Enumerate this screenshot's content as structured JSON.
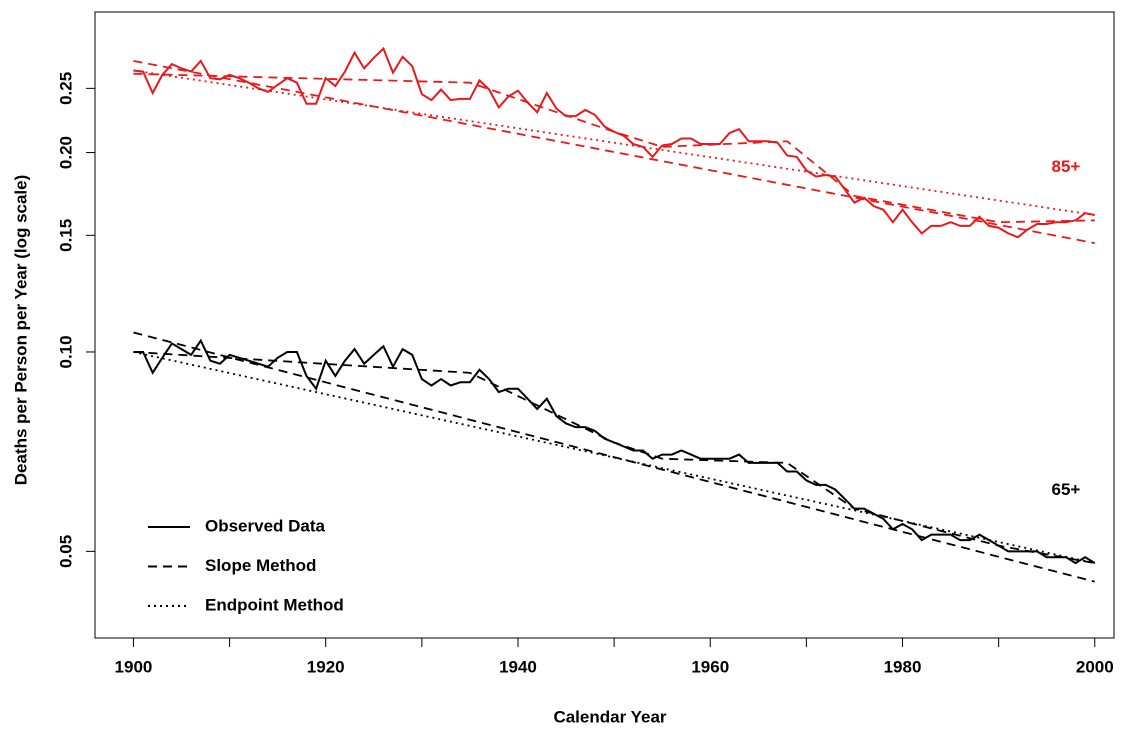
{
  "chart_data": {
    "type": "line",
    "x_label": "Calendar Year",
    "y_label": "Deaths per Person per Year (log scale)",
    "log_y": true,
    "xlim": [
      1896,
      2002
    ],
    "ylim": [
      0.037,
      0.326
    ],
    "xticks": [
      1900,
      1920,
      1940,
      1960,
      1980,
      2000
    ],
    "xminor_ticks": [
      1910,
      1930,
      1950,
      1970,
      1990
    ],
    "yticks": [
      0.05,
      {
        "value": 0.1,
        "label": "0.10"
      },
      0.15,
      {
        "value": 0.2,
        "label": "0.20"
      },
      0.25
    ],
    "legend": {
      "position": "bottom-left",
      "entries": [
        {
          "name": "Observed Data",
          "style": "solid"
        },
        {
          "name": "Slope Method",
          "style": "dashed"
        },
        {
          "name": "Endpoint Method",
          "style": "dotted"
        }
      ]
    },
    "annotations": [
      {
        "text": "85+",
        "x": 1997,
        "y": 0.19,
        "color": "#e8191c"
      },
      {
        "text": "65+",
        "x": 1997,
        "y": 0.0618,
        "color": "#000000"
      }
    ],
    "series": [
      {
        "style": "solid",
        "color": "#e8191c",
        "x": [
          1900,
          1901,
          1902,
          1903,
          1904,
          1905,
          1906,
          1907,
          1908,
          1909,
          1910,
          1911,
          1912,
          1913,
          1914,
          1915,
          1916,
          1917,
          1918,
          1919,
          1920,
          1921,
          1922,
          1923,
          1924,
          1925,
          1926,
          1927,
          1928,
          1929,
          1930,
          1931,
          1932,
          1933,
          1934,
          1935,
          1936,
          1937,
          1938,
          1939,
          1940,
          1941,
          1942,
          1943,
          1944,
          1945,
          1946,
          1947,
          1948,
          1949,
          1950,
          1951,
          1952,
          1953,
          1954,
          1955,
          1956,
          1957,
          1958,
          1959,
          1960,
          1961,
          1962,
          1963,
          1964,
          1965,
          1966,
          1967,
          1968,
          1969,
          1970,
          1971,
          1972,
          1973,
          1974,
          1975,
          1976,
          1977,
          1978,
          1979,
          1980,
          1981,
          1982,
          1983,
          1984,
          1985,
          1986,
          1987,
          1988,
          1989,
          1990,
          1991,
          1992,
          1993,
          1994,
          1995,
          1996,
          1997,
          1998,
          1999,
          2000
        ],
        "values": [
          0.266,
          0.265,
          0.246,
          0.262,
          0.272,
          0.268,
          0.265,
          0.275,
          0.259,
          0.258,
          0.262,
          0.259,
          0.255,
          0.25,
          0.247,
          0.253,
          0.259,
          0.255,
          0.237,
          0.237,
          0.259,
          0.252,
          0.265,
          0.283,
          0.268,
          0.278,
          0.287,
          0.264,
          0.279,
          0.27,
          0.245,
          0.24,
          0.249,
          0.24,
          0.241,
          0.241,
          0.257,
          0.249,
          0.234,
          0.243,
          0.248,
          0.238,
          0.23,
          0.246,
          0.233,
          0.227,
          0.227,
          0.232,
          0.228,
          0.219,
          0.215,
          0.212,
          0.206,
          0.204,
          0.197,
          0.205,
          0.206,
          0.21,
          0.21,
          0.206,
          0.206,
          0.206,
          0.214,
          0.217,
          0.208,
          0.208,
          0.208,
          0.207,
          0.198,
          0.197,
          0.188,
          0.184,
          0.185,
          0.184,
          0.176,
          0.168,
          0.171,
          0.166,
          0.164,
          0.157,
          0.164,
          0.157,
          0.151,
          0.155,
          0.155,
          0.157,
          0.155,
          0.155,
          0.16,
          0.155,
          0.154,
          0.151,
          0.149,
          0.153,
          0.156,
          0.156,
          0.157,
          0.157,
          0.158,
          0.162,
          0.161
        ]
      },
      {
        "style": "dashed",
        "color": "#e8191c",
        "x": [
          1900,
          2000
        ],
        "values": [
          0.275,
          0.146
        ]
      },
      {
        "style": "dashed",
        "color": "#e8191c",
        "x": [
          1900,
          1935,
          1950,
          1955,
          1968,
          1975,
          1990,
          2000
        ],
        "values": [
          0.263,
          0.255,
          0.215,
          0.204,
          0.208,
          0.172,
          0.157,
          0.158
        ]
      },
      {
        "style": "dotted",
        "color": "#e8191c",
        "x": [
          1900,
          2000
        ],
        "values": [
          0.266,
          0.161
        ]
      },
      {
        "style": "solid",
        "color": "#000000",
        "x": [
          1900,
          1901,
          1902,
          1903,
          1904,
          1905,
          1906,
          1907,
          1908,
          1909,
          1910,
          1911,
          1912,
          1913,
          1914,
          1915,
          1916,
          1917,
          1918,
          1919,
          1920,
          1921,
          1922,
          1923,
          1924,
          1925,
          1926,
          1927,
          1928,
          1929,
          1930,
          1931,
          1932,
          1933,
          1934,
          1935,
          1936,
          1937,
          1938,
          1939,
          1940,
          1941,
          1942,
          1943,
          1944,
          1945,
          1946,
          1947,
          1948,
          1949,
          1950,
          1951,
          1952,
          1953,
          1954,
          1955,
          1956,
          1957,
          1958,
          1959,
          1960,
          1961,
          1962,
          1963,
          1964,
          1965,
          1966,
          1967,
          1968,
          1969,
          1970,
          1971,
          1972,
          1973,
          1974,
          1975,
          1976,
          1977,
          1978,
          1979,
          1980,
          1981,
          1982,
          1983,
          1984,
          1985,
          1986,
          1987,
          1988,
          1989,
          1990,
          1991,
          1992,
          1993,
          1994,
          1995,
          1996,
          1997,
          1998,
          1999,
          2000
        ],
        "values": [
          0.1,
          0.1,
          0.093,
          0.098,
          0.103,
          0.101,
          0.099,
          0.104,
          0.097,
          0.096,
          0.099,
          0.098,
          0.097,
          0.096,
          0.095,
          0.098,
          0.1,
          0.1,
          0.092,
          0.088,
          0.097,
          0.092,
          0.097,
          0.101,
          0.096,
          0.099,
          0.102,
          0.095,
          0.101,
          0.099,
          0.091,
          0.089,
          0.091,
          0.089,
          0.09,
          0.09,
          0.094,
          0.091,
          0.087,
          0.088,
          0.088,
          0.085,
          0.082,
          0.085,
          0.08,
          0.078,
          0.077,
          0.077,
          0.076,
          0.074,
          0.073,
          0.072,
          0.071,
          0.071,
          0.069,
          0.07,
          0.07,
          0.071,
          0.07,
          0.069,
          0.069,
          0.069,
          0.069,
          0.07,
          0.068,
          0.068,
          0.068,
          0.068,
          0.066,
          0.066,
          0.064,
          0.063,
          0.063,
          0.062,
          0.06,
          0.058,
          0.058,
          0.057,
          0.056,
          0.054,
          0.055,
          0.054,
          0.052,
          0.053,
          0.053,
          0.053,
          0.052,
          0.052,
          0.053,
          0.052,
          0.051,
          0.05,
          0.05,
          0.05,
          0.05,
          0.049,
          0.049,
          0.049,
          0.048,
          0.049,
          0.048
        ]
      },
      {
        "style": "dashed",
        "color": "#000000",
        "x": [
          1900,
          2000
        ],
        "values": [
          0.107,
          0.045
        ]
      },
      {
        "style": "dashed",
        "color": "#000000",
        "x": [
          1900,
          1935,
          1950,
          1955,
          1968,
          1975,
          1990,
          2000
        ],
        "values": [
          0.1,
          0.093,
          0.073,
          0.069,
          0.068,
          0.058,
          0.051,
          0.048
        ]
      },
      {
        "style": "dotted",
        "color": "#000000",
        "x": [
          1900,
          2000
        ],
        "values": [
          0.1,
          0.048
        ]
      }
    ]
  }
}
